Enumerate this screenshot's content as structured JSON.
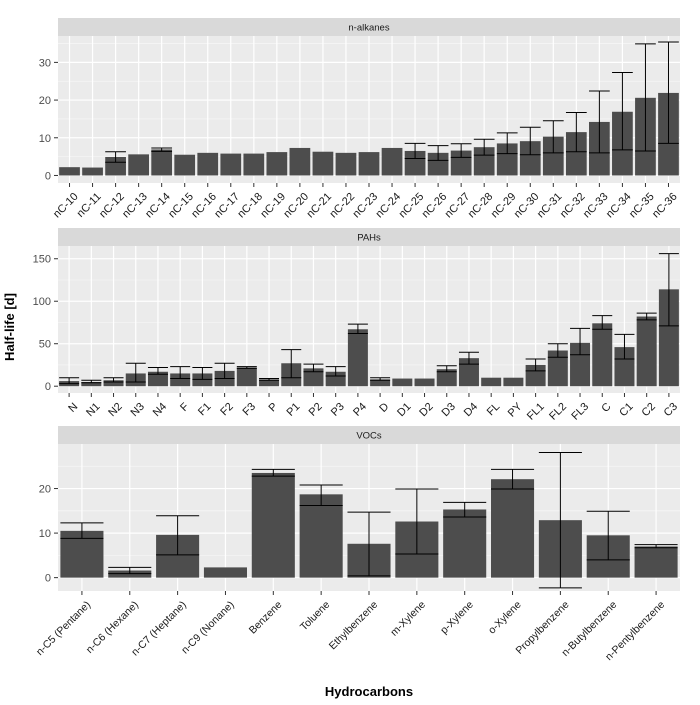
{
  "figure": {
    "ylabel": "Half-life [d]",
    "xlabel": "Hydrocarbons"
  },
  "chart_data": [
    {
      "type": "bar",
      "title": "n-alkanes",
      "ylim": [
        -2,
        37
      ],
      "yticks": [
        0,
        10,
        20,
        30
      ],
      "categories": [
        "nC-10",
        "nC-11",
        "nC-12",
        "nC-13",
        "nC-14",
        "nC-15",
        "nC-16",
        "nC-17",
        "nC-18",
        "nC-19",
        "nC-20",
        "nC-21",
        "nC-22",
        "nC-23",
        "nC-24",
        "nC-25",
        "nC-26",
        "nC-27",
        "nC-28",
        "nC-29",
        "nC-30",
        "nC-31",
        "nC-32",
        "nC-33",
        "nC-34",
        "nC-35",
        "nC-36"
      ],
      "values": [
        2.2,
        2.1,
        4.9,
        5.6,
        6.9,
        5.5,
        6.0,
        5.8,
        5.8,
        6.2,
        7.3,
        6.3,
        6.0,
        6.2,
        7.3,
        6.5,
        6.0,
        6.6,
        7.5,
        8.5,
        9.1,
        10.3,
        11.5,
        14.2,
        16.9,
        20.6,
        21.9
      ],
      "err_low": [
        null,
        null,
        3.5,
        null,
        6.4,
        null,
        null,
        null,
        null,
        null,
        null,
        null,
        null,
        null,
        null,
        4.5,
        4.0,
        4.8,
        5.4,
        5.8,
        5.5,
        6.0,
        6.3,
        6.0,
        6.8,
        6.5,
        8.5
      ],
      "err_high": [
        null,
        null,
        6.3,
        null,
        7.3,
        null,
        null,
        null,
        null,
        null,
        null,
        null,
        null,
        null,
        null,
        8.5,
        7.9,
        8.4,
        9.6,
        11.3,
        12.8,
        14.5,
        16.7,
        22.4,
        27.3,
        34.9,
        35.4
      ]
    },
    {
      "type": "bar",
      "title": "PAHs",
      "ylim": [
        -8,
        165
      ],
      "yticks": [
        0,
        50,
        100,
        150
      ],
      "categories": [
        "N",
        "N1",
        "N2",
        "N3",
        "N4",
        "F",
        "F1",
        "F2",
        "F3",
        "P",
        "P1",
        "P2",
        "P3",
        "P4",
        "D",
        "D1",
        "D2",
        "D3",
        "D4",
        "FL",
        "PY",
        "FL1",
        "FL2",
        "FL3",
        "C",
        "C1",
        "C2",
        "C3"
      ],
      "values": [
        6,
        5,
        7,
        15,
        17,
        15,
        15,
        18,
        22,
        8,
        27,
        21,
        17,
        67,
        8,
        9,
        9,
        20,
        33,
        10,
        10,
        25,
        42,
        51,
        74,
        46,
        82,
        114
      ],
      "err_low": [
        3,
        4,
        5,
        5,
        14,
        9,
        8,
        9,
        21,
        7,
        10,
        17,
        12,
        62,
        7,
        null,
        null,
        17,
        26,
        null,
        null,
        18,
        34,
        37,
        67,
        32,
        78,
        71
      ],
      "err_high": [
        10,
        7,
        10,
        27,
        22,
        23,
        22,
        27,
        23,
        9,
        43,
        26,
        23,
        73,
        10,
        null,
        null,
        24,
        40,
        null,
        null,
        32,
        50,
        68,
        83,
        61,
        86,
        156
      ]
    },
    {
      "type": "bar",
      "title": "VOCs",
      "ylim": [
        -3,
        30
      ],
      "yticks": [
        0,
        10,
        20
      ],
      "categories": [
        "n-C5 (Pentane)",
        "n-C6 (Hexane)",
        "n-C7 (Heptane)",
        "n-C9 (Nonane)",
        "Benzene",
        "Toluene",
        "Ethylbenzene",
        "m-Xylene",
        "p-Xylene",
        "o-Xylene",
        "Propylbenzene",
        "n-Butylbenzene",
        "n-Pentylbenzene"
      ],
      "values": [
        10.5,
        1.6,
        9.6,
        2.3,
        23.5,
        18.7,
        7.6,
        12.6,
        15.3,
        22.1,
        12.9,
        9.5,
        7.0
      ],
      "err_low": [
        8.8,
        0.9,
        5.1,
        null,
        22.8,
        16.2,
        0.4,
        5.3,
        13.6,
        19.9,
        -2.3,
        4.0,
        6.7
      ],
      "err_high": [
        12.3,
        2.3,
        13.9,
        null,
        24.3,
        20.8,
        14.7,
        19.9,
        16.9,
        24.3,
        28.1,
        14.9,
        7.4
      ]
    }
  ]
}
